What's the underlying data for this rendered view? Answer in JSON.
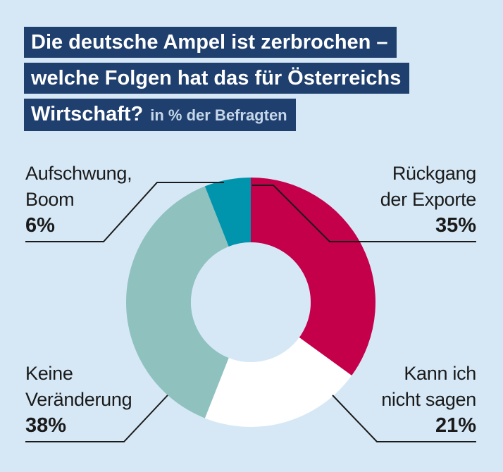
{
  "title_lines": [
    "Die deutsche Ampel ist zerbrochen –",
    "welche Folgen hat das für Österreichs",
    "Wirtschaft?"
  ],
  "subtitle": "in % der Befragten",
  "colors": {
    "background": "#d6e8f6",
    "title_bg": "#1f3f6e",
    "leader": "#1a1a1a"
  },
  "chart_data": {
    "type": "pie",
    "title": "Die deutsche Ampel ist zerbrochen – welche Folgen hat das für Österreichs Wirtschaft?",
    "subtitle": "in % der Befragten",
    "unit": "%",
    "slices": [
      {
        "label_line1": "Rückgang",
        "label_line2": "der Exporte",
        "value": 35,
        "value_label": "35%",
        "color": "#c5004a"
      },
      {
        "label_line1": "Kann ich",
        "label_line2": "nicht sagen",
        "value": 21,
        "value_label": "21%",
        "color": "#ffffff"
      },
      {
        "label_line1": "Keine",
        "label_line2": "Veränderung",
        "value": 38,
        "value_label": "38%",
        "color": "#8fc1bf"
      },
      {
        "label_line1": "Aufschwung,",
        "label_line2": "Boom",
        "value": 6,
        "value_label": "6%",
        "color": "#0094ad"
      }
    ]
  }
}
